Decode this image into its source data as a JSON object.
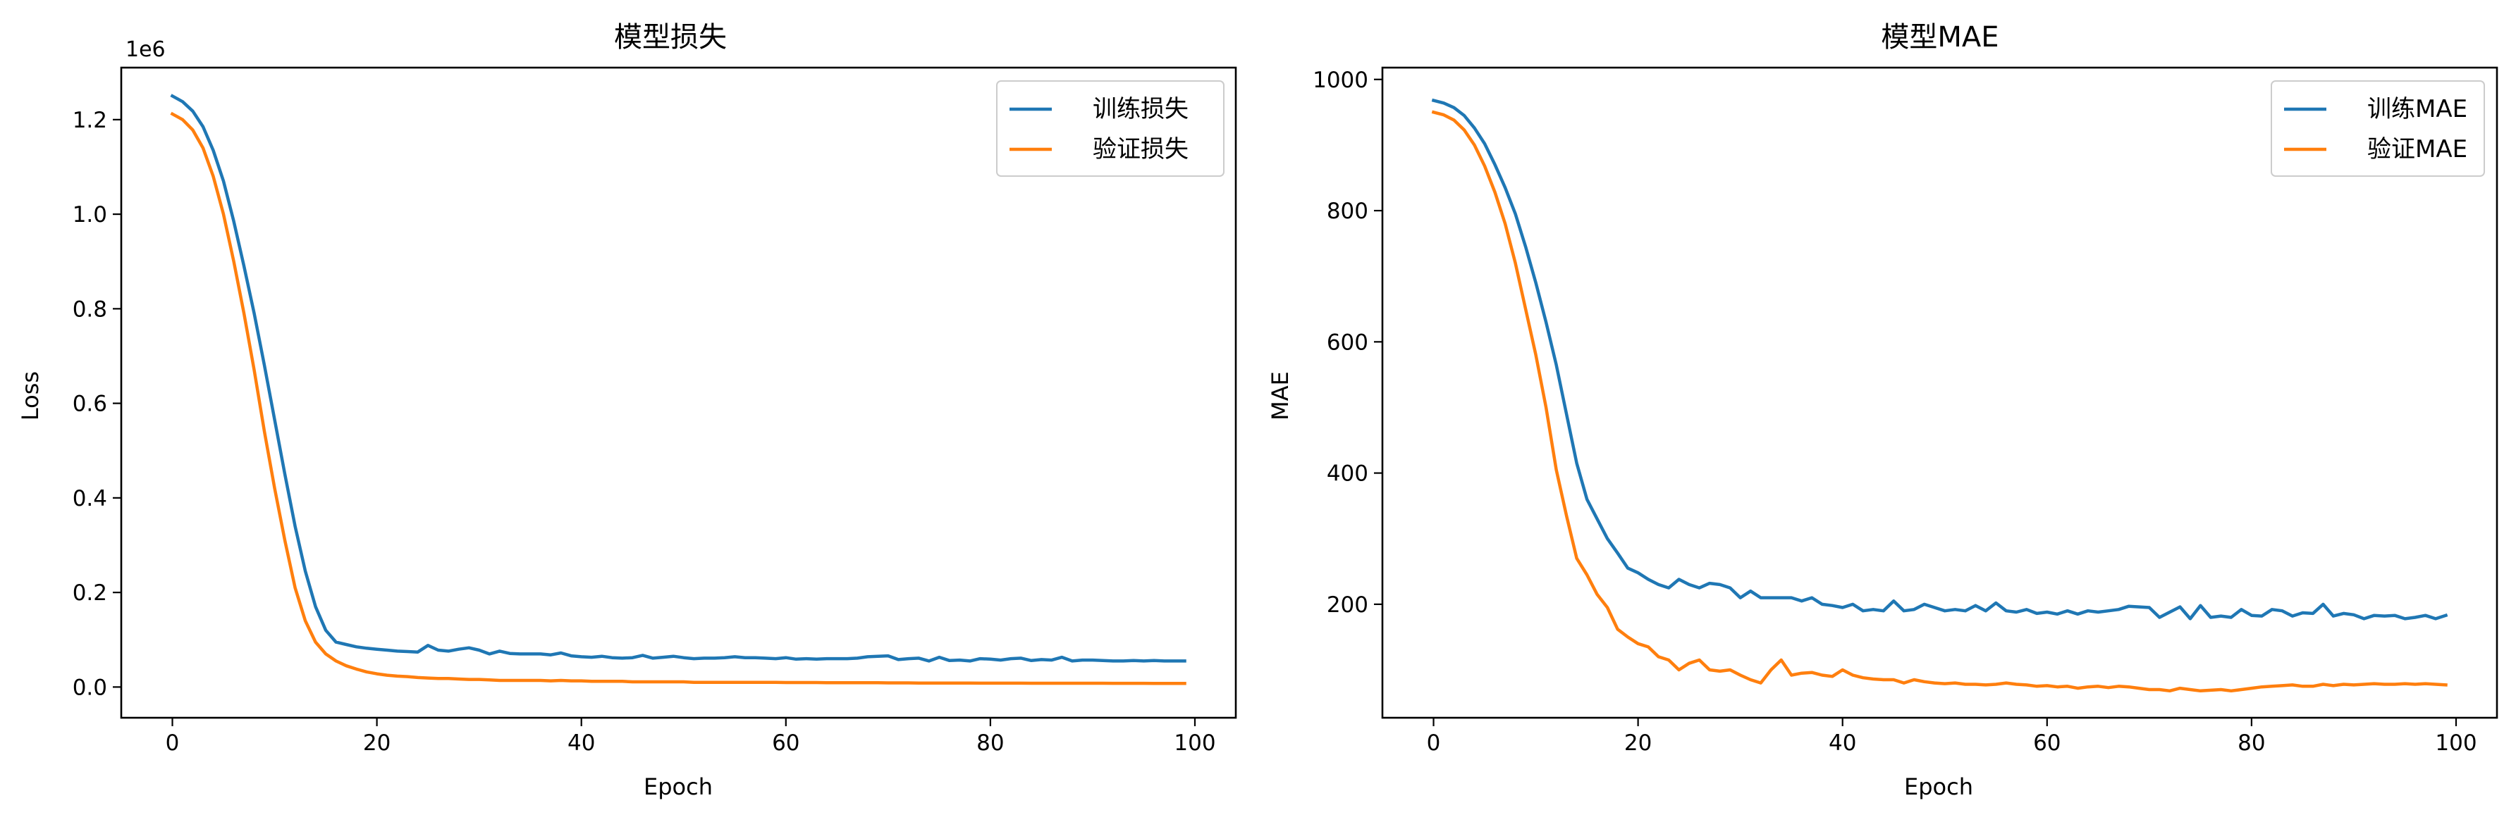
{
  "chart_data": [
    {
      "type": "line",
      "title": "模型损失",
      "xlabel": "Epoch",
      "ylabel": "Loss",
      "offset_label": "1e6",
      "xlim": [
        -5,
        104
      ],
      "ylim": [
        -65000,
        1310000
      ],
      "x_ticks": [
        0,
        20,
        40,
        60,
        80,
        100
      ],
      "x_tick_labels": [
        "0",
        "20",
        "40",
        "60",
        "80",
        "100"
      ],
      "y_ticks": [
        0,
        200000,
        400000,
        600000,
        800000,
        1000000,
        1200000
      ],
      "y_tick_labels": [
        "0.0",
        "0.2",
        "0.4",
        "0.6",
        "0.8",
        "1.0",
        "1.2"
      ],
      "grid": false,
      "legend_position": "top-right",
      "series": [
        {
          "name": "训练损失",
          "color": "#1f77b4",
          "x": [
            0,
            1,
            2,
            3,
            4,
            5,
            6,
            7,
            8,
            9,
            10,
            11,
            12,
            13,
            14,
            15,
            16,
            17,
            18,
            19,
            20,
            21,
            22,
            23,
            24,
            25,
            26,
            27,
            28,
            29,
            30,
            31,
            32,
            33,
            34,
            35,
            36,
            37,
            38,
            39,
            40,
            41,
            42,
            43,
            44,
            45,
            46,
            47,
            48,
            49,
            50,
            51,
            52,
            53,
            54,
            55,
            56,
            57,
            58,
            59,
            60,
            61,
            62,
            63,
            64,
            65,
            66,
            67,
            68,
            69,
            70,
            71,
            72,
            73,
            74,
            75,
            76,
            77,
            78,
            79,
            80,
            81,
            82,
            83,
            84,
            85,
            86,
            87,
            88,
            89,
            90,
            91,
            92,
            93,
            94,
            95,
            96,
            97,
            98,
            99
          ],
          "y": [
            1250000,
            1238000,
            1218000,
            1185000,
            1135000,
            1070000,
            985000,
            890000,
            790000,
            680000,
            565000,
            450000,
            340000,
            245000,
            170000,
            120000,
            95000,
            90000,
            85000,
            82000,
            80000,
            78000,
            76000,
            75000,
            74000,
            88000,
            78000,
            76000,
            80000,
            83000,
            78000,
            70000,
            76000,
            71000,
            70000,
            70000,
            70000,
            68000,
            72000,
            66000,
            64000,
            63000,
            65000,
            62000,
            61000,
            62000,
            67000,
            61000,
            63000,
            65000,
            62000,
            60000,
            61000,
            61000,
            62000,
            64000,
            62000,
            62000,
            61000,
            60000,
            62000,
            59000,
            60000,
            59000,
            60000,
            60000,
            60000,
            61000,
            64000,
            65000,
            66000,
            58000,
            60000,
            61000,
            55000,
            63000,
            56000,
            57000,
            55000,
            60000,
            59000,
            57000,
            60000,
            61000,
            56000,
            58000,
            57000,
            63000,
            55000,
            57000,
            57000,
            56000,
            55000,
            55000,
            56000,
            55000,
            56000,
            55000,
            55000,
            55000
          ]
        },
        {
          "name": "验证损失",
          "color": "#ff7f0e",
          "x": [
            0,
            1,
            2,
            3,
            4,
            5,
            6,
            7,
            8,
            9,
            10,
            11,
            12,
            13,
            14,
            15,
            16,
            17,
            18,
            19,
            20,
            21,
            22,
            23,
            24,
            25,
            26,
            27,
            28,
            29,
            30,
            31,
            32,
            33,
            34,
            35,
            36,
            37,
            38,
            39,
            40,
            41,
            42,
            43,
            44,
            45,
            46,
            47,
            48,
            49,
            50,
            51,
            52,
            53,
            54,
            55,
            56,
            57,
            58,
            59,
            60,
            61,
            62,
            63,
            64,
            65,
            66,
            67,
            68,
            69,
            70,
            71,
            72,
            73,
            74,
            75,
            76,
            77,
            78,
            79,
            80,
            81,
            82,
            83,
            84,
            85,
            86,
            87,
            88,
            89,
            90,
            91,
            92,
            93,
            94,
            95,
            96,
            97,
            98,
            99
          ],
          "y": [
            1212000,
            1200000,
            1178000,
            1140000,
            1080000,
            1000000,
            900000,
            790000,
            670000,
            540000,
            420000,
            310000,
            210000,
            140000,
            95000,
            70000,
            55000,
            45000,
            38000,
            32000,
            28000,
            25000,
            23000,
            22000,
            20000,
            19000,
            18000,
            18000,
            17000,
            16000,
            16000,
            15000,
            14000,
            14000,
            14000,
            14000,
            14000,
            13000,
            14000,
            13000,
            13000,
            12000,
            12000,
            12000,
            12000,
            11000,
            11000,
            11000,
            11000,
            11000,
            11000,
            10000,
            10000,
            10000,
            10000,
            10000,
            10000,
            10000,
            10000,
            10000,
            9500,
            9500,
            9500,
            9500,
            9000,
            9000,
            9000,
            9000,
            9000,
            9000,
            8800,
            8800,
            8800,
            8500,
            8500,
            8500,
            8500,
            8500,
            8500,
            8200,
            8200,
            8200,
            8200,
            8200,
            8000,
            8000,
            8000,
            8000,
            8000,
            8000,
            8000,
            8000,
            7800,
            7800,
            7800,
            7800,
            7600,
            7600,
            7600,
            7500
          ]
        }
      ]
    },
    {
      "type": "line",
      "title": "模型MAE",
      "xlabel": "Epoch",
      "ylabel": "MAE",
      "xlim": [
        -5,
        104
      ],
      "ylim": [
        27,
        1018
      ],
      "x_ticks": [
        0,
        20,
        40,
        60,
        80,
        100
      ],
      "x_tick_labels": [
        "0",
        "20",
        "40",
        "60",
        "80",
        "100"
      ],
      "y_ticks": [
        200,
        400,
        600,
        800,
        1000
      ],
      "y_tick_labels": [
        "200",
        "400",
        "600",
        "800",
        "1000"
      ],
      "grid": false,
      "legend_position": "top-right",
      "series": [
        {
          "name": "训练MAE",
          "color": "#1f77b4",
          "x": [
            0,
            1,
            2,
            3,
            4,
            5,
            6,
            7,
            8,
            9,
            10,
            11,
            12,
            13,
            14,
            15,
            16,
            17,
            18,
            19,
            20,
            21,
            22,
            23,
            24,
            25,
            26,
            27,
            28,
            29,
            30,
            31,
            32,
            33,
            34,
            35,
            36,
            37,
            38,
            39,
            40,
            41,
            42,
            43,
            44,
            45,
            46,
            47,
            48,
            49,
            50,
            51,
            52,
            53,
            54,
            55,
            56,
            57,
            58,
            59,
            60,
            61,
            62,
            63,
            64,
            65,
            66,
            67,
            68,
            69,
            70,
            71,
            72,
            73,
            74,
            75,
            76,
            77,
            78,
            79,
            80,
            81,
            82,
            83,
            84,
            85,
            86,
            87,
            88,
            89,
            90,
            91,
            92,
            93,
            94,
            95,
            96,
            97,
            98,
            99
          ],
          "y": [
            968,
            964,
            957,
            945,
            926,
            902,
            870,
            835,
            795,
            745,
            690,
            630,
            565,
            490,
            415,
            360,
            330,
            300,
            278,
            255,
            248,
            238,
            230,
            225,
            238,
            230,
            225,
            232,
            230,
            225,
            210,
            220,
            210,
            210,
            210,
            210,
            205,
            210,
            200,
            198,
            195,
            200,
            190,
            192,
            190,
            205,
            190,
            192,
            200,
            195,
            190,
            192,
            190,
            198,
            190,
            202,
            190,
            188,
            192,
            186,
            188,
            185,
            190,
            185,
            190,
            188,
            190,
            192,
            197,
            196,
            195,
            180,
            188,
            196,
            178,
            198,
            180,
            182,
            180,
            192,
            183,
            182,
            192,
            190,
            182,
            187,
            186,
            200,
            182,
            186,
            184,
            178,
            183,
            182,
            183,
            178,
            180,
            183,
            178,
            183
          ]
        },
        {
          "name": "验证MAE",
          "color": "#ff7f0e",
          "x": [
            0,
            1,
            2,
            3,
            4,
            5,
            6,
            7,
            8,
            9,
            10,
            11,
            12,
            13,
            14,
            15,
            16,
            17,
            18,
            19,
            20,
            21,
            22,
            23,
            24,
            25,
            26,
            27,
            28,
            29,
            30,
            31,
            32,
            33,
            34,
            35,
            36,
            37,
            38,
            39,
            40,
            41,
            42,
            43,
            44,
            45,
            46,
            47,
            48,
            49,
            50,
            51,
            52,
            53,
            54,
            55,
            56,
            57,
            58,
            59,
            60,
            61,
            62,
            63,
            64,
            65,
            66,
            67,
            68,
            69,
            70,
            71,
            72,
            73,
            74,
            75,
            76,
            77,
            78,
            79,
            80,
            81,
            82,
            83,
            84,
            85,
            86,
            87,
            88,
            89,
            90,
            91,
            92,
            93,
            94,
            95,
            96,
            97,
            98,
            99
          ],
          "y": [
            950,
            946,
            938,
            923,
            900,
            868,
            828,
            780,
            720,
            650,
            580,
            500,
            405,
            335,
            270,
            245,
            215,
            195,
            162,
            150,
            140,
            135,
            120,
            115,
            100,
            110,
            115,
            100,
            98,
            100,
            92,
            85,
            80,
            100,
            115,
            92,
            95,
            96,
            92,
            90,
            100,
            92,
            88,
            86,
            85,
            85,
            80,
            85,
            82,
            80,
            79,
            80,
            78,
            78,
            77,
            78,
            80,
            78,
            77,
            75,
            76,
            74,
            75,
            72,
            74,
            75,
            73,
            75,
            74,
            72,
            70,
            70,
            68,
            72,
            70,
            68,
            69,
            70,
            68,
            70,
            72,
            74,
            75,
            76,
            77,
            75,
            75,
            78,
            76,
            78,
            77,
            78,
            79,
            78,
            78,
            79,
            78,
            79,
            78,
            77
          ]
        }
      ]
    }
  ]
}
